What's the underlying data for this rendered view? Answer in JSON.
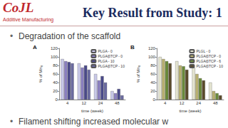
{
  "slide": {
    "logo": {
      "text": "CoJL",
      "subtitle": "Additive Manufacturing"
    },
    "title": "Key Result from Study: 1",
    "bullets": [
      "Degradation of the scaffold",
      "Filament shifting increased molecular w"
    ]
  },
  "chart_data": [
    {
      "type": "bar",
      "title": "A",
      "x_label": "time (week)",
      "y_label": "% of Mn₀",
      "categories": [
        "4",
        "12",
        "24",
        "48"
      ],
      "series": [
        {
          "name": "PLGA - 0",
          "color": "#c8c8e8",
          "values": [
            95,
            85,
            60,
            20
          ]
        },
        {
          "name": "PLGA/βTCP - 0",
          "color": "#8a7fc0",
          "values": [
            90,
            75,
            45,
            15
          ]
        },
        {
          "name": "PLGA - 10",
          "color": "#4a4a8a",
          "values": [
            88,
            80,
            55,
            25
          ]
        },
        {
          "name": "PLGA/βTCP - 10",
          "color": "#6a6aa0",
          "values": [
            85,
            70,
            40,
            10
          ]
        }
      ],
      "ylim": [
        0,
        120
      ],
      "yticks": [
        0,
        20,
        40,
        60,
        80,
        100,
        120
      ],
      "grid": false,
      "legend": "upper right"
    },
    {
      "type": "bar",
      "title": "B",
      "x_label": "time (week)",
      "y_label": "% of Mn₀",
      "categories": [
        "4",
        "12",
        "24",
        "48"
      ],
      "series": [
        {
          "name": "PLGL - 0",
          "color": "#e4e4d0",
          "values": [
            100,
            90,
            75,
            40
          ]
        },
        {
          "name": "PLGA/βTCP - 0",
          "color": "#b8b070",
          "values": [
            95,
            80,
            60,
            20
          ]
        },
        {
          "name": "PLGA/βTCP - 6",
          "color": "#6a8a3a",
          "values": [
            90,
            78,
            50,
            15
          ]
        },
        {
          "name": "PLGA/βTCP - 10",
          "color": "#5a4a2a",
          "values": [
            85,
            70,
            45,
            10
          ]
        }
      ],
      "ylim": [
        0,
        120
      ],
      "yticks": [
        0,
        20,
        40,
        60,
        80,
        100,
        120
      ],
      "grid": false,
      "legend": "upper right"
    }
  ]
}
